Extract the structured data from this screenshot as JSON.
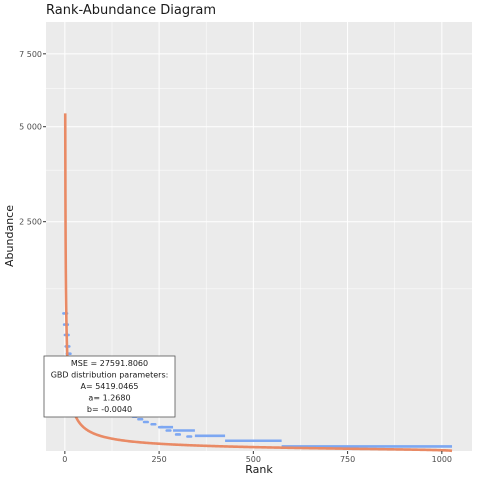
{
  "chart_data": {
    "type": "scatter",
    "title": "Rank-Abundance Diagram",
    "xlabel": "Rank",
    "ylabel": "Abundance",
    "x_ticks": [
      0,
      250,
      500,
      750,
      1000
    ],
    "x_tick_labels": [
      "0",
      "250",
      "500",
      "750",
      "1000"
    ],
    "y_ticks": [
      2500,
      5000,
      7500
    ],
    "y_tick_labels": [
      "2 500",
      "5 000",
      "7 500"
    ],
    "xlim": [
      -50,
      1080
    ],
    "y_scale": "sqrt",
    "ylim": [
      0,
      8750
    ],
    "grid": true,
    "colors": {
      "observed": "#7da7f2",
      "fitted": "#e98a65",
      "panel": "#ebebeb",
      "grid": "#ffffff"
    },
    "series": [
      {
        "role": "observed",
        "style": "points",
        "points": [
          [
            1,
            900
          ],
          [
            3,
            760
          ],
          [
            5,
            640
          ],
          [
            7,
            520
          ],
          [
            10,
            450
          ],
          [
            14,
            380
          ],
          [
            18,
            340
          ],
          [
            22,
            300
          ],
          [
            27,
            270
          ],
          [
            33,
            245
          ],
          [
            40,
            220
          ],
          [
            48,
            200
          ],
          [
            56,
            180
          ],
          [
            64,
            165
          ],
          [
            72,
            150
          ],
          [
            80,
            140
          ],
          [
            90,
            128
          ],
          [
            100,
            118
          ],
          [
            110,
            110
          ],
          [
            120,
            100
          ],
          [
            130,
            92
          ],
          [
            140,
            86
          ],
          [
            150,
            80
          ],
          [
            160,
            72
          ],
          [
            172,
            64
          ],
          [
            185,
            56
          ],
          [
            200,
            48
          ],
          [
            215,
            40
          ],
          [
            235,
            34
          ],
          [
            255,
            27
          ],
          [
            275,
            20
          ],
          [
            300,
            13
          ],
          [
            330,
            10
          ]
        ]
      },
      {
        "role": "observed",
        "style": "steps",
        "segments": [
          [
            255,
            287,
            27
          ],
          [
            287,
            345,
            20
          ],
          [
            345,
            425,
            11
          ],
          [
            425,
            575,
            5
          ],
          [
            575,
            1027,
            1
          ]
        ]
      },
      {
        "role": "fitted",
        "style": "line",
        "model": "GBD",
        "params": {
          "A": 5419.0465,
          "a": 1.268,
          "b": -0.004
        }
      }
    ],
    "annotation": {
      "lines": [
        "MSE = 27591.8060",
        "GBD distribution parameters:",
        "A= 5419.0465",
        "a= 1.2680",
        "b= -0.0040"
      ]
    }
  }
}
